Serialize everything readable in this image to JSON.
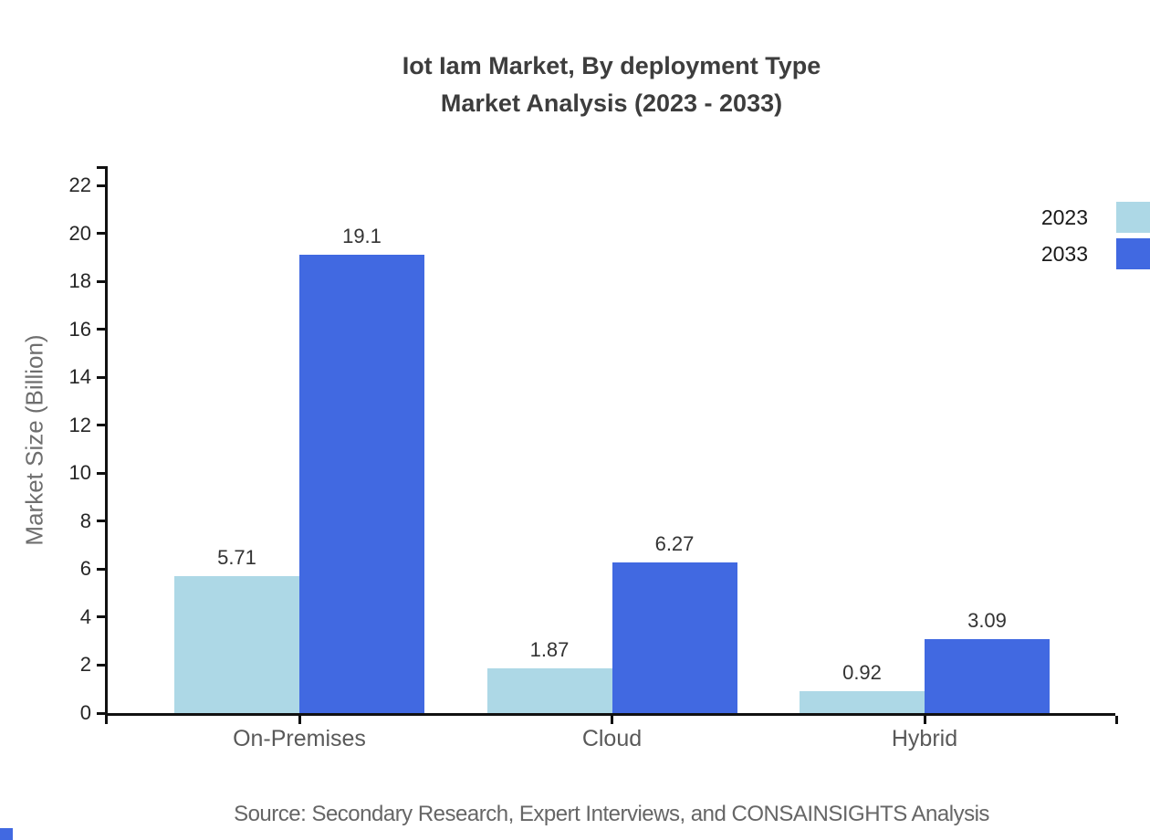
{
  "chart_data": {
    "type": "bar",
    "title": "Iot Iam Market, By deployment Type",
    "subtitle": "Market Analysis (2023 - 2033)",
    "categories": [
      "On-Premises",
      "Cloud",
      "Hybrid"
    ],
    "series": [
      {
        "name": "2023",
        "color": "#add8e6",
        "values": [
          5.71,
          1.87,
          0.92
        ]
      },
      {
        "name": "2033",
        "color": "#4169e1",
        "values": [
          19.1,
          6.27,
          3.09
        ]
      }
    ],
    "xlabel": "",
    "ylabel": "Market Size (Billion)",
    "ylim": [
      0,
      22.8
    ],
    "yticks": [
      0,
      2,
      4,
      6,
      8,
      10,
      12,
      14,
      16,
      18,
      20,
      22
    ],
    "grid": false,
    "legend_position": "top-right",
    "source": "Source: Secondary Research, Expert Interviews, and CONSAINSIGHTS Analysis"
  }
}
